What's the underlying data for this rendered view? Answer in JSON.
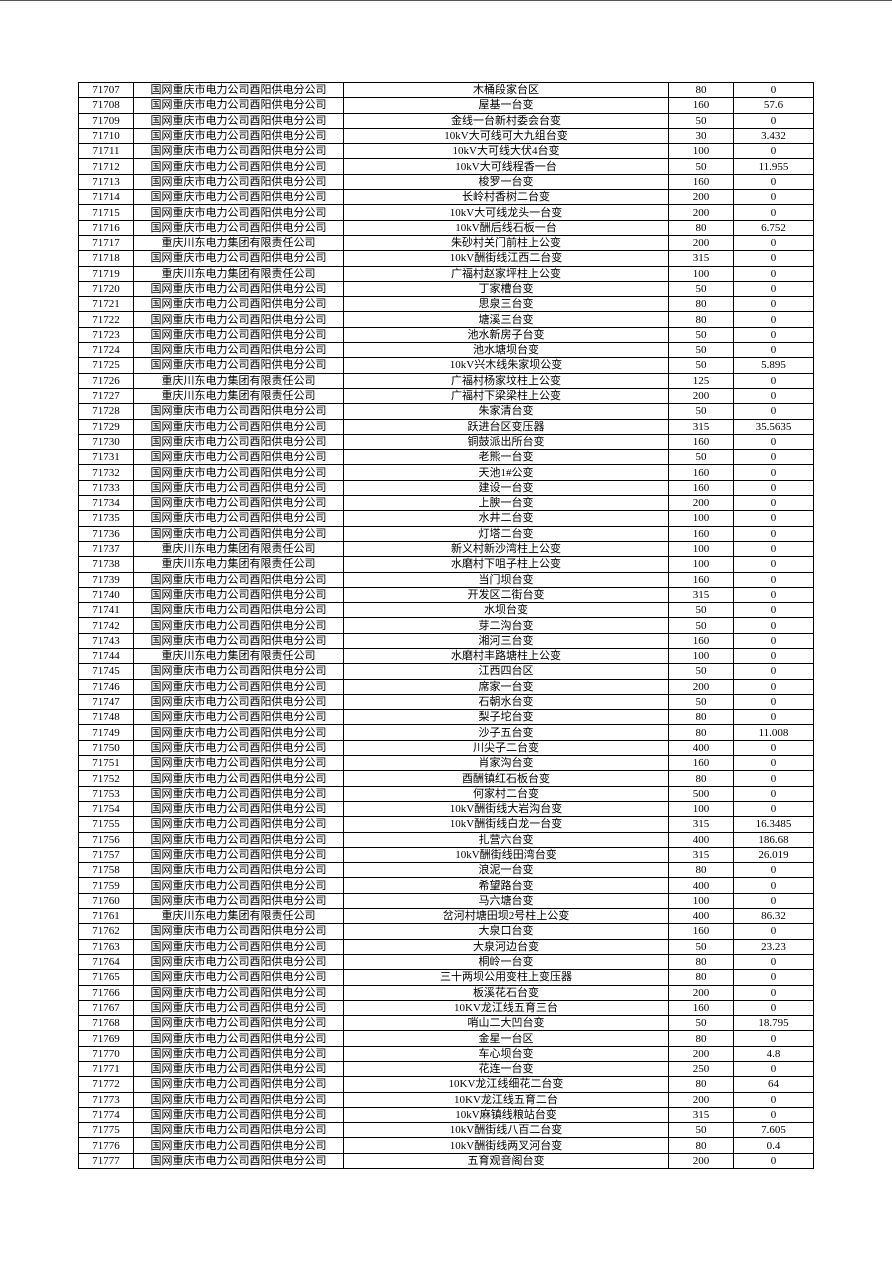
{
  "table": {
    "rows": [
      [
        "71707",
        "国网重庆市电力公司酉阳供电分公司",
        "木桶段家台区",
        "80",
        "0"
      ],
      [
        "71708",
        "国网重庆市电力公司酉阳供电分公司",
        "屋基一台变",
        "160",
        "57.6"
      ],
      [
        "71709",
        "国网重庆市电力公司酉阳供电分公司",
        "金线一台新村委会台变",
        "50",
        "0"
      ],
      [
        "71710",
        "国网重庆市电力公司酉阳供电分公司",
        "10kV大可线可大九组台变",
        "30",
        "3.432"
      ],
      [
        "71711",
        "国网重庆市电力公司酉阳供电分公司",
        "10kV大可线大伏4台变",
        "100",
        "0"
      ],
      [
        "71712",
        "国网重庆市电力公司酉阳供电分公司",
        "10kV大可线程香一台",
        "50",
        "11.955"
      ],
      [
        "71713",
        "国网重庆市电力公司酉阳供电分公司",
        "梭罗一台变",
        "160",
        "0"
      ],
      [
        "71714",
        "国网重庆市电力公司酉阳供电分公司",
        "长岭村香树二台变",
        "200",
        "0"
      ],
      [
        "71715",
        "国网重庆市电力公司酉阳供电分公司",
        "10kV大可线龙头一台变",
        "200",
        "0"
      ],
      [
        "71716",
        "国网重庆市电力公司酉阳供电分公司",
        "10kV酬后线石板一台",
        "80",
        "6.752"
      ],
      [
        "71717",
        "重庆川东电力集团有限责任公司",
        "朱砂村关门前柱上公变",
        "200",
        "0"
      ],
      [
        "71718",
        "国网重庆市电力公司酉阳供电分公司",
        "10kV酬街线江西二台变",
        "315",
        "0"
      ],
      [
        "71719",
        "重庆川东电力集团有限责任公司",
        "广福村赵家坪柱上公变",
        "100",
        "0"
      ],
      [
        "71720",
        "国网重庆市电力公司酉阳供电分公司",
        "丁家槽台变",
        "50",
        "0"
      ],
      [
        "71721",
        "国网重庆市电力公司酉阳供电分公司",
        "思泉三台变",
        "80",
        "0"
      ],
      [
        "71722",
        "国网重庆市电力公司酉阳供电分公司",
        "塘溪三台变",
        "80",
        "0"
      ],
      [
        "71723",
        "国网重庆市电力公司酉阳供电分公司",
        "池水新房子台变",
        "50",
        "0"
      ],
      [
        "71724",
        "国网重庆市电力公司酉阳供电分公司",
        "池水塘坝台变",
        "50",
        "0"
      ],
      [
        "71725",
        "国网重庆市电力公司酉阳供电分公司",
        "10kV兴木线朱家坝公变",
        "50",
        "5.895"
      ],
      [
        "71726",
        "重庆川东电力集团有限责任公司",
        "广福村杨家坟柱上公变",
        "125",
        "0"
      ],
      [
        "71727",
        "重庆川东电力集团有限责任公司",
        "广福村下梁梁柱上公变",
        "200",
        "0"
      ],
      [
        "71728",
        "国网重庆市电力公司酉阳供电分公司",
        "朱家清台变",
        "50",
        "0"
      ],
      [
        "71729",
        "国网重庆市电力公司酉阳供电分公司",
        "跃进台区变压器",
        "315",
        "35.5635"
      ],
      [
        "71730",
        "国网重庆市电力公司酉阳供电分公司",
        "铜鼓派出所台变",
        "160",
        "0"
      ],
      [
        "71731",
        "国网重庆市电力公司酉阳供电分公司",
        "老熊一台变",
        "50",
        "0"
      ],
      [
        "71732",
        "国网重庆市电力公司酉阳供电分公司",
        "天池1#公变",
        "160",
        "0"
      ],
      [
        "71733",
        "国网重庆市电力公司酉阳供电分公司",
        "建设一台变",
        "160",
        "0"
      ],
      [
        "71734",
        "国网重庆市电力公司酉阳供电分公司",
        "上腴一台变",
        "200",
        "0"
      ],
      [
        "71735",
        "国网重庆市电力公司酉阳供电分公司",
        "水井二台变",
        "100",
        "0"
      ],
      [
        "71736",
        "国网重庆市电力公司酉阳供电分公司",
        "灯塔二台变",
        "160",
        "0"
      ],
      [
        "71737",
        "重庆川东电力集团有限责任公司",
        "新义村新沙湾柱上公变",
        "100",
        "0"
      ],
      [
        "71738",
        "重庆川东电力集团有限责任公司",
        "水磨村下咀子柱上公变",
        "100",
        "0"
      ],
      [
        "71739",
        "国网重庆市电力公司酉阳供电分公司",
        "当门坝台变",
        "160",
        "0"
      ],
      [
        "71740",
        "国网重庆市电力公司酉阳供电分公司",
        "开发区二街台变",
        "315",
        "0"
      ],
      [
        "71741",
        "国网重庆市电力公司酉阳供电分公司",
        "水坝台变",
        "50",
        "0"
      ],
      [
        "71742",
        "国网重庆市电力公司酉阳供电分公司",
        "芽二沟台变",
        "50",
        "0"
      ],
      [
        "71743",
        "国网重庆市电力公司酉阳供电分公司",
        "湘河三台变",
        "160",
        "0"
      ],
      [
        "71744",
        "重庆川东电力集团有限责任公司",
        "水磨村丰路塘柱上公变",
        "100",
        "0"
      ],
      [
        "71745",
        "国网重庆市电力公司酉阳供电分公司",
        "江西四台区",
        "50",
        "0"
      ],
      [
        "71746",
        "国网重庆市电力公司酉阳供电分公司",
        "席家一台变",
        "200",
        "0"
      ],
      [
        "71747",
        "国网重庆市电力公司酉阳供电分公司",
        "石朝水台变",
        "50",
        "0"
      ],
      [
        "71748",
        "国网重庆市电力公司酉阳供电分公司",
        "梨子坨台变",
        "80",
        "0"
      ],
      [
        "71749",
        "国网重庆市电力公司酉阳供电分公司",
        "沙子五台变",
        "80",
        "11.008"
      ],
      [
        "71750",
        "国网重庆市电力公司酉阳供电分公司",
        "川尖子二台变",
        "400",
        "0"
      ],
      [
        "71751",
        "国网重庆市电力公司酉阳供电分公司",
        "肖家沟台变",
        "160",
        "0"
      ],
      [
        "71752",
        "国网重庆市电力公司酉阳供电分公司",
        "酉酬镇红石板台变",
        "80",
        "0"
      ],
      [
        "71753",
        "国网重庆市电力公司酉阳供电分公司",
        "何家村二台变",
        "500",
        "0"
      ],
      [
        "71754",
        "国网重庆市电力公司酉阳供电分公司",
        "10kV酬街线大岩沟台变",
        "100",
        "0"
      ],
      [
        "71755",
        "国网重庆市电力公司酉阳供电分公司",
        "10kV酬街线白龙一台变",
        "315",
        "16.3485"
      ],
      [
        "71756",
        "国网重庆市电力公司酉阳供电分公司",
        "扎营六台变",
        "400",
        "186.68"
      ],
      [
        "71757",
        "国网重庆市电力公司酉阳供电分公司",
        "10kV酬街线田湾台变",
        "315",
        "26.019"
      ],
      [
        "71758",
        "国网重庆市电力公司酉阳供电分公司",
        "浪泥一台变",
        "80",
        "0"
      ],
      [
        "71759",
        "国网重庆市电力公司酉阳供电分公司",
        "希望路台变",
        "400",
        "0"
      ],
      [
        "71760",
        "国网重庆市电力公司酉阳供电分公司",
        "马六塘台变",
        "100",
        "0"
      ],
      [
        "71761",
        "重庆川东电力集团有限责任公司",
        "岔河村塘田坝2号柱上公变",
        "400",
        "86.32"
      ],
      [
        "71762",
        "国网重庆市电力公司酉阳供电分公司",
        "大泉口台变",
        "160",
        "0"
      ],
      [
        "71763",
        "国网重庆市电力公司酉阳供电分公司",
        "大泉河边台变",
        "50",
        "23.23"
      ],
      [
        "71764",
        "国网重庆市电力公司酉阳供电分公司",
        "桐岭一台变",
        "80",
        "0"
      ],
      [
        "71765",
        "国网重庆市电力公司酉阳供电分公司",
        "三十两坝公用变柱上变压器",
        "80",
        "0"
      ],
      [
        "71766",
        "国网重庆市电力公司酉阳供电分公司",
        "板溪花石台变",
        "200",
        "0"
      ],
      [
        "71767",
        "国网重庆市电力公司酉阳供电分公司",
        "10KV龙江线五育三台",
        "160",
        "0"
      ],
      [
        "71768",
        "国网重庆市电力公司酉阳供电分公司",
        "哨山二大凹台变",
        "50",
        "18.795"
      ],
      [
        "71769",
        "国网重庆市电力公司酉阳供电分公司",
        "金星一台区",
        "80",
        "0"
      ],
      [
        "71770",
        "国网重庆市电力公司酉阳供电分公司",
        "车心坝台变",
        "200",
        "4.8"
      ],
      [
        "71771",
        "国网重庆市电力公司酉阳供电分公司",
        "花连一台变",
        "250",
        "0"
      ],
      [
        "71772",
        "国网重庆市电力公司酉阳供电分公司",
        "10KV龙江线细花二台变",
        "80",
        "64"
      ],
      [
        "71773",
        "国网重庆市电力公司酉阳供电分公司",
        "10KV龙江线五育二台",
        "200",
        "0"
      ],
      [
        "71774",
        "国网重庆市电力公司酉阳供电分公司",
        "10kV麻镇线粮站台变",
        "315",
        "0"
      ],
      [
        "71775",
        "国网重庆市电力公司酉阳供电分公司",
        "10kV酬街线八百二台变",
        "50",
        "7.605"
      ],
      [
        "71776",
        "国网重庆市电力公司酉阳供电分公司",
        "10kV酬街线两叉河台变",
        "80",
        "0.4"
      ],
      [
        "71777",
        "国网重庆市电力公司酉阳供电分公司",
        "五育观音阁台变",
        "200",
        "0"
      ]
    ]
  }
}
